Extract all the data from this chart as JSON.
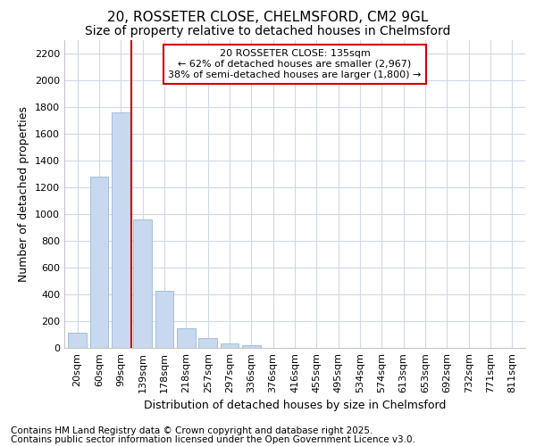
{
  "title_line1": "20, ROSSETER CLOSE, CHELMSFORD, CM2 9GL",
  "title_line2": "Size of property relative to detached houses in Chelmsford",
  "xlabel": "Distribution of detached houses by size in Chelmsford",
  "ylabel": "Number of detached properties",
  "categories": [
    "20sqm",
    "60sqm",
    "99sqm",
    "139sqm",
    "178sqm",
    "218sqm",
    "257sqm",
    "297sqm",
    "336sqm",
    "376sqm",
    "416sqm",
    "455sqm",
    "495sqm",
    "534sqm",
    "574sqm",
    "613sqm",
    "653sqm",
    "692sqm",
    "732sqm",
    "771sqm",
    "811sqm"
  ],
  "values": [
    115,
    1280,
    1760,
    960,
    430,
    150,
    75,
    35,
    20,
    0,
    0,
    0,
    0,
    0,
    0,
    0,
    0,
    0,
    0,
    0,
    0
  ],
  "bar_color": "#c8d8ef",
  "bar_edge_color": "#9ab8d8",
  "vline_color": "#cc0000",
  "annotation_line1": "20 ROSSETER CLOSE: 135sqm",
  "annotation_line2": "← 62% of detached houses are smaller (2,967)",
  "annotation_line3": "38% of semi-detached houses are larger (1,800) →",
  "annotation_box_color": "#ffffff",
  "annotation_box_edge": "#cc0000",
  "ylim": [
    0,
    2300
  ],
  "yticks": [
    0,
    200,
    400,
    600,
    800,
    1000,
    1200,
    1400,
    1600,
    1800,
    2000,
    2200
  ],
  "footer_line1": "Contains HM Land Registry data © Crown copyright and database right 2025.",
  "footer_line2": "Contains public sector information licensed under the Open Government Licence v3.0.",
  "bg_color": "#ffffff",
  "plot_bg_color": "#ffffff",
  "grid_color": "#d0d8e8",
  "title_fontsize": 11,
  "subtitle_fontsize": 10,
  "axis_label_fontsize": 9,
  "tick_fontsize": 8,
  "footer_fontsize": 7.5,
  "annot_fontsize": 8
}
